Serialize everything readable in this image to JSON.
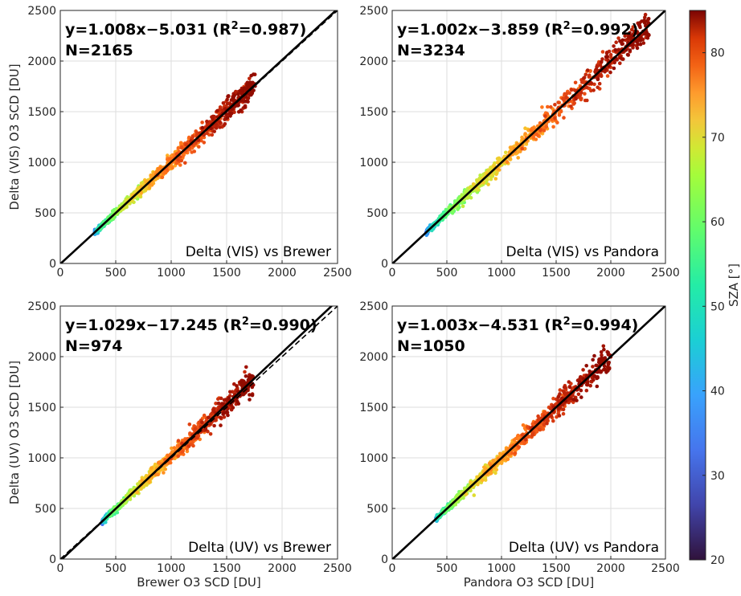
{
  "figure": {
    "panel_titles_none": true
  },
  "chart_data": [
    {
      "type": "scatter",
      "panel": "top-left",
      "xlim": [
        0,
        2500
      ],
      "ylim": [
        0,
        2500
      ],
      "xticks": [
        0,
        500,
        1000,
        1500,
        2000,
        2500
      ],
      "yticks": [
        0,
        500,
        1000,
        1500,
        2000,
        2500
      ],
      "xlabel": "",
      "ylabel": "Delta (VIS) O3 SCD [DU]",
      "equation_text": "y=1.008x−5.031 (R",
      "r2_value_text": "=0.987)",
      "n_text": "N=2165",
      "annotation": "Delta (VIS) vs Brewer",
      "fit": {
        "slope": 1.008,
        "intercept": -5.031,
        "r2": 0.987
      },
      "n": 2165,
      "x_range": [
        310,
        1760
      ],
      "sza_range": [
        28,
        84
      ],
      "grid": true
    },
    {
      "type": "scatter",
      "panel": "top-right",
      "xlim": [
        0,
        2500
      ],
      "ylim": [
        0,
        2500
      ],
      "xticks": [
        0,
        500,
        1000,
        1500,
        2000,
        2500
      ],
      "yticks": [
        0,
        500,
        1000,
        1500,
        2000,
        2500
      ],
      "xlabel": "",
      "ylabel": "",
      "equation_text": "y=1.002x−3.859 (R",
      "r2_value_text": "=0.992)",
      "n_text": "N=3234",
      "annotation": "Delta (VIS) vs Pandora",
      "fit": {
        "slope": 1.002,
        "intercept": -3.859,
        "r2": 0.992
      },
      "n": 3234,
      "x_range": [
        310,
        2350
      ],
      "sza_range": [
        25,
        84
      ],
      "grid": true
    },
    {
      "type": "scatter",
      "panel": "bottom-left",
      "xlim": [
        0,
        2500
      ],
      "ylim": [
        0,
        2500
      ],
      "xticks": [
        0,
        500,
        1000,
        1500,
        2000,
        2500
      ],
      "yticks": [
        0,
        500,
        1000,
        1500,
        2000,
        2500
      ],
      "xlabel": "Brewer O3 SCD [DU]",
      "ylabel": "Delta (UV) O3 SCD [DU]",
      "equation_text": "y=1.029x−17.245 (R",
      "r2_value_text": "=0.990)",
      "n_text": "N=974",
      "annotation": "Delta (UV) vs Brewer",
      "fit": {
        "slope": 1.029,
        "intercept": -17.245,
        "r2": 0.99
      },
      "n": 974,
      "x_range": [
        380,
        1750
      ],
      "sza_range": [
        28,
        84
      ],
      "grid": true
    },
    {
      "type": "scatter",
      "panel": "bottom-right",
      "xlim": [
        0,
        2500
      ],
      "ylim": [
        0,
        2500
      ],
      "xticks": [
        0,
        500,
        1000,
        1500,
        2000,
        2500
      ],
      "yticks": [
        0,
        500,
        1000,
        1500,
        2000,
        2500
      ],
      "xlabel": "Pandora O3 SCD [DU]",
      "ylabel": "",
      "equation_text": "y=1.003x−4.531 (R",
      "r2_value_text": "=0.994)",
      "n_text": "N=1050",
      "annotation": "Delta (UV) vs Pandora",
      "fit": {
        "slope": 1.003,
        "intercept": -4.531,
        "r2": 0.994
      },
      "n": 1050,
      "x_range": [
        400,
        2000
      ],
      "sza_range": [
        30,
        84
      ],
      "grid": true
    }
  ],
  "colorbar": {
    "label": "SZA [°]",
    "range": [
      20,
      85
    ],
    "ticks": [
      20,
      30,
      40,
      50,
      60,
      70,
      80
    ],
    "colormap": "turbo"
  },
  "superscript_2": "2",
  "colors": {
    "fit_line": "#000000",
    "grid": "#dddddd",
    "axis": "#262626"
  }
}
